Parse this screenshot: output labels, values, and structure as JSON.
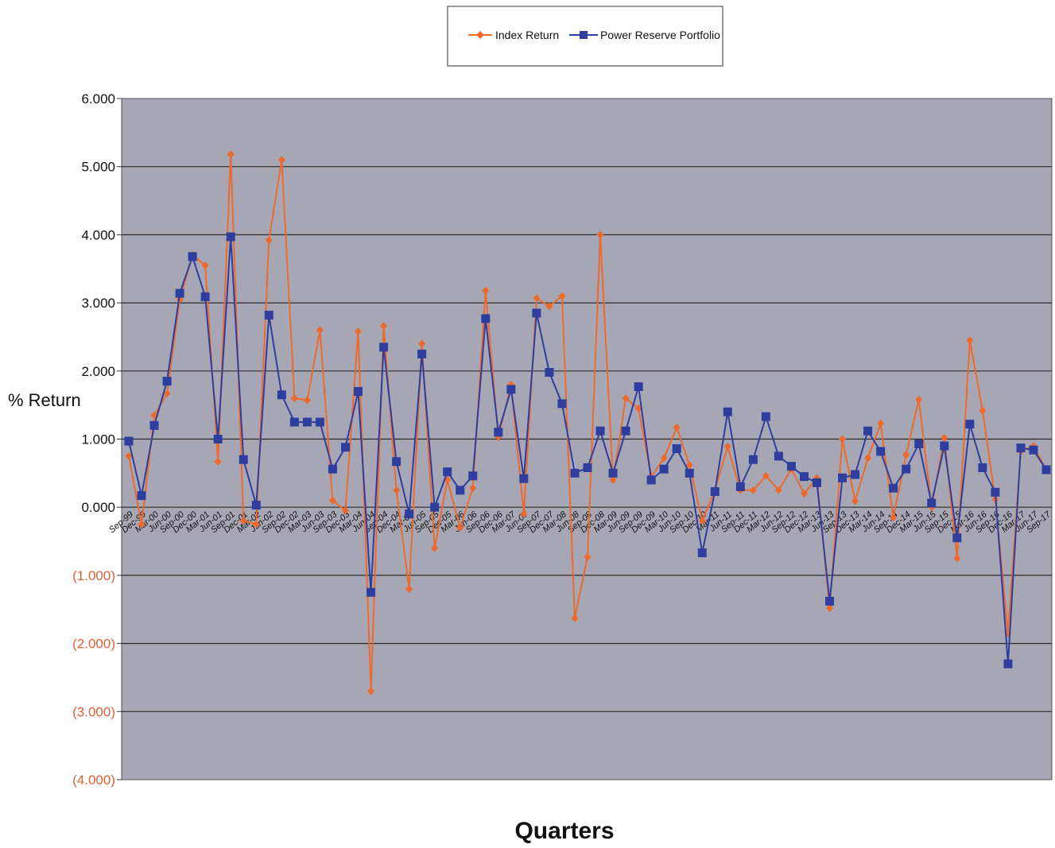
{
  "chart_data": {
    "type": "line",
    "title": "",
    "xlabel": "Quarters",
    "ylabel": "% Return",
    "ylim": [
      -4,
      6
    ],
    "y_ticks": [
      6,
      5,
      4,
      3,
      2,
      1,
      0,
      -1,
      -2,
      -3,
      -4
    ],
    "y_tick_labels": [
      "6.000",
      "5.000",
      "4.000",
      "3.000",
      "2.000",
      "1.000",
      "0.000",
      "(1.000)",
      "(2.000)",
      "(3.000)",
      "(4.000)"
    ],
    "grid": true,
    "legend_position": "top-center",
    "categories": [
      "Sep-99",
      "Dec-99",
      "Mar-00",
      "Jun-00",
      "Sep-00",
      "Dec-00",
      "Mar-01",
      "Jun-01",
      "Sep-01",
      "Dec-01",
      "Mar-02",
      "Jun-02",
      "Sep-02",
      "Dec-02",
      "Mar-03",
      "Jun-03",
      "Sep-03",
      "Dec-03",
      "Mar-04",
      "Jun-04",
      "Sep-04",
      "Dec-04",
      "Mar-05",
      "Jun-05",
      "Sep-05",
      "Dec-05",
      "Mar-06",
      "Jun-06",
      "Sep-06",
      "Dec-06",
      "Mar-07",
      "Jun-07",
      "Sep-07",
      "Dec-07",
      "Mar-08",
      "Jun-08",
      "Sep-08",
      "Dec-08",
      "Mar-09",
      "Jun-09",
      "Sep-09",
      "Dec-09",
      "Mar-10",
      "Jun-10",
      "Sep-10",
      "Dec-10",
      "Mar-11",
      "Jun-11",
      "Sep-11",
      "Dec-11",
      "Mar-12",
      "Jun-12",
      "Sep-12",
      "Dec-12",
      "Mar-13",
      "Jun-13",
      "Sep-13",
      "Dec-13",
      "Mar-14",
      "Jun-14",
      "Sep-14",
      "Dec-14",
      "Mar-15",
      "Jun-15",
      "Sep-15",
      "Dec-15",
      "Mar-16",
      "Jun-16",
      "Sep-16",
      "Dec-16",
      "Mar-17",
      "Jun-17",
      "Sep-17"
    ],
    "series": [
      {
        "name": "Index Return",
        "color": "#ef6a2a",
        "marker": "diamond",
        "values": [
          0.75,
          -0.25,
          1.35,
          1.67,
          3.05,
          3.7,
          3.55,
          0.67,
          5.18,
          -0.2,
          -0.25,
          3.92,
          5.1,
          1.6,
          1.57,
          2.6,
          0.1,
          -0.05,
          2.58,
          -2.7,
          2.66,
          0.25,
          -1.2,
          2.4,
          -0.6,
          0.4,
          -0.3,
          0.28,
          3.18,
          1.03,
          1.8,
          -0.1,
          3.07,
          2.95,
          3.1,
          -1.63,
          -0.73,
          4.0,
          0.4,
          1.6,
          1.45,
          0.45,
          0.72,
          1.17,
          0.62,
          -0.2,
          0.25,
          0.89,
          0.25,
          0.25,
          0.46,
          0.25,
          0.56,
          0.2,
          0.43,
          -1.48,
          1.0,
          0.09,
          0.72,
          1.23,
          -0.15,
          0.77,
          1.58,
          0.0,
          1.02,
          -0.75,
          2.45,
          1.42,
          0.12,
          -1.85,
          0.82,
          0.9,
          0.55
        ]
      },
      {
        "name": "Power Reserve Portfolio",
        "color": "#2e3e9e",
        "marker": "square",
        "values": [
          0.97,
          0.17,
          1.2,
          1.85,
          3.14,
          3.68,
          3.09,
          1.0,
          3.97,
          0.7,
          0.03,
          2.82,
          1.65,
          1.25,
          1.25,
          1.25,
          0.56,
          0.88,
          1.7,
          -1.25,
          2.35,
          0.67,
          -0.1,
          2.25,
          0.0,
          0.52,
          0.25,
          0.46,
          2.77,
          1.1,
          1.73,
          0.42,
          2.85,
          1.98,
          1.52,
          0.5,
          0.58,
          1.12,
          0.5,
          1.12,
          1.77,
          0.4,
          0.56,
          0.86,
          0.5,
          -0.67,
          0.23,
          1.4,
          0.3,
          0.7,
          1.33,
          0.75,
          0.6,
          0.45,
          0.36,
          -1.38,
          0.43,
          0.48,
          1.12,
          0.82,
          0.28,
          0.56,
          0.93,
          0.06,
          0.9,
          -0.45,
          1.22,
          0.58,
          0.22,
          -2.3,
          0.87,
          0.84,
          0.55
        ]
      }
    ]
  }
}
